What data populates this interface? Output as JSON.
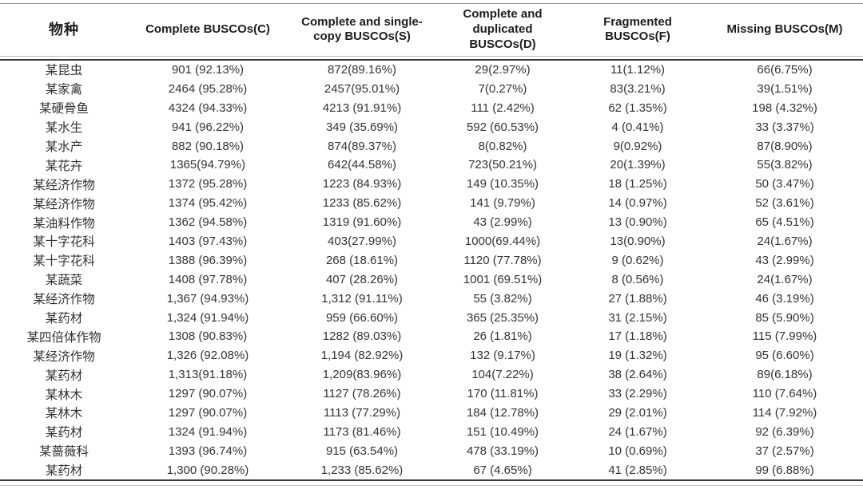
{
  "table": {
    "columns": [
      {
        "key": "species",
        "label": "物种"
      },
      {
        "key": "complete",
        "label": "Complete BUSCOs(C)"
      },
      {
        "key": "single",
        "label": "Complete and single-copy BUSCOs(S)"
      },
      {
        "key": "duplicated",
        "label": "Complete and duplicated BUSCOs(D)"
      },
      {
        "key": "fragmented",
        "label": "Fragmented BUSCOs(F)"
      },
      {
        "key": "missing",
        "label": "Missing BUSCOs(M)"
      }
    ],
    "rows": [
      [
        "某昆虫",
        "901 (92.13%)",
        "872(89.16%)",
        "29(2.97%)",
        "11(1.12%)",
        "66(6.75%)"
      ],
      [
        "某家禽",
        "2464 (95.28%)",
        "2457(95.01%)",
        "7(0.27%)",
        "83(3.21%)",
        "39(1.51%)"
      ],
      [
        "某硬骨鱼",
        "4324 (94.33%)",
        "4213 (91.91%)",
        "111 (2.42%)",
        "62 (1.35%)",
        "198 (4.32%)"
      ],
      [
        "某水生",
        "941 (96.22%)",
        "349 (35.69%)",
        "592 (60.53%)",
        "4 (0.41%)",
        "33 (3.37%)"
      ],
      [
        "某水产",
        "882 (90.18%)",
        "874(89.37%)",
        "8(0.82%)",
        "9(0.92%)",
        "87(8.90%)"
      ],
      [
        "某花卉",
        "1365(94.79%)",
        "642(44.58%)",
        "723(50.21%)",
        "20(1.39%)",
        "55(3.82%)"
      ],
      [
        "某经济作物",
        "1372 (95.28%)",
        "1223 (84.93%)",
        "149 (10.35%)",
        "18 (1.25%)",
        "50 (3.47%)"
      ],
      [
        "某经济作物",
        "1374 (95.42%)",
        "1233 (85.62%)",
        "141 (9.79%)",
        "14 (0.97%)",
        "52 (3.61%)"
      ],
      [
        "某油料作物",
        "1362 (94.58%)",
        "1319 (91.60%)",
        "43 (2.99%)",
        "13 (0.90%)",
        "65 (4.51%)"
      ],
      [
        "某十字花科",
        "1403 (97.43%)",
        "403(27.99%)",
        "1000(69.44%)",
        "13(0.90%)",
        "24(1.67%)"
      ],
      [
        "某十字花科",
        "1388 (96.39%)",
        "268 (18.61%)",
        "1120 (77.78%)",
        "9 (0.62%)",
        "43 (2.99%)"
      ],
      [
        "某蔬菜",
        "1408 (97.78%)",
        "407 (28.26%)",
        "1001 (69.51%)",
        "8 (0.56%)",
        "24(1.67%)"
      ],
      [
        "某经济作物",
        "1,367 (94.93%)",
        "1,312 (91.11%)",
        "55 (3.82%)",
        "27 (1.88%)",
        "46 (3.19%)"
      ],
      [
        "某药材",
        "1,324 (91.94%)",
        "959 (66.60%)",
        "365 (25.35%)",
        "31 (2.15%)",
        "85 (5.90%)"
      ],
      [
        "某四倍体作物",
        "1308 (90.83%)",
        "1282 (89.03%)",
        "26 (1.81%)",
        "17 (1.18%)",
        "115 (7.99%)"
      ],
      [
        "某经济作物",
        "1,326 (92.08%)",
        "1,194 (82.92%)",
        "132 (9.17%)",
        "19 (1.32%)",
        "95 (6.60%)"
      ],
      [
        "某药材",
        "1,313(91.18%)",
        "1,209(83.96%)",
        "104(7.22%)",
        "38 (2.64%)",
        "89(6.18%)"
      ],
      [
        "某林木",
        "1297 (90.07%)",
        "1127 (78.26%)",
        "170 (11.81%)",
        "33 (2.29%)",
        "110 (7.64%)"
      ],
      [
        "某林木",
        "1297 (90.07%)",
        "1113 (77.29%)",
        "184 (12.78%)",
        "29 (2.01%)",
        "114 (7.92%)"
      ],
      [
        "某药材",
        "1324 (91.94%)",
        "1173 (81.46%)",
        "151 (10.49%)",
        "24 (1.67%)",
        "92 (6.39%)"
      ],
      [
        "某蔷薇科",
        "1393 (96.74%)",
        "915 (63.54%)",
        "478 (33.19%)",
        "10 (0.69%)",
        "37 (2.57%)"
      ],
      [
        "某药材",
        "1,300 (90.28%)",
        "1,233 (85.62%)",
        "67 (4.65%)",
        "41 (2.85%)",
        "99 (6.88%)"
      ]
    ],
    "colors": {
      "heavy_rule": "#3a3a3a",
      "light_rule": "#bdbdbd",
      "top_rule": "#8f8f8f",
      "header_text": "#1d1d1d",
      "body_text": "#333333"
    }
  }
}
